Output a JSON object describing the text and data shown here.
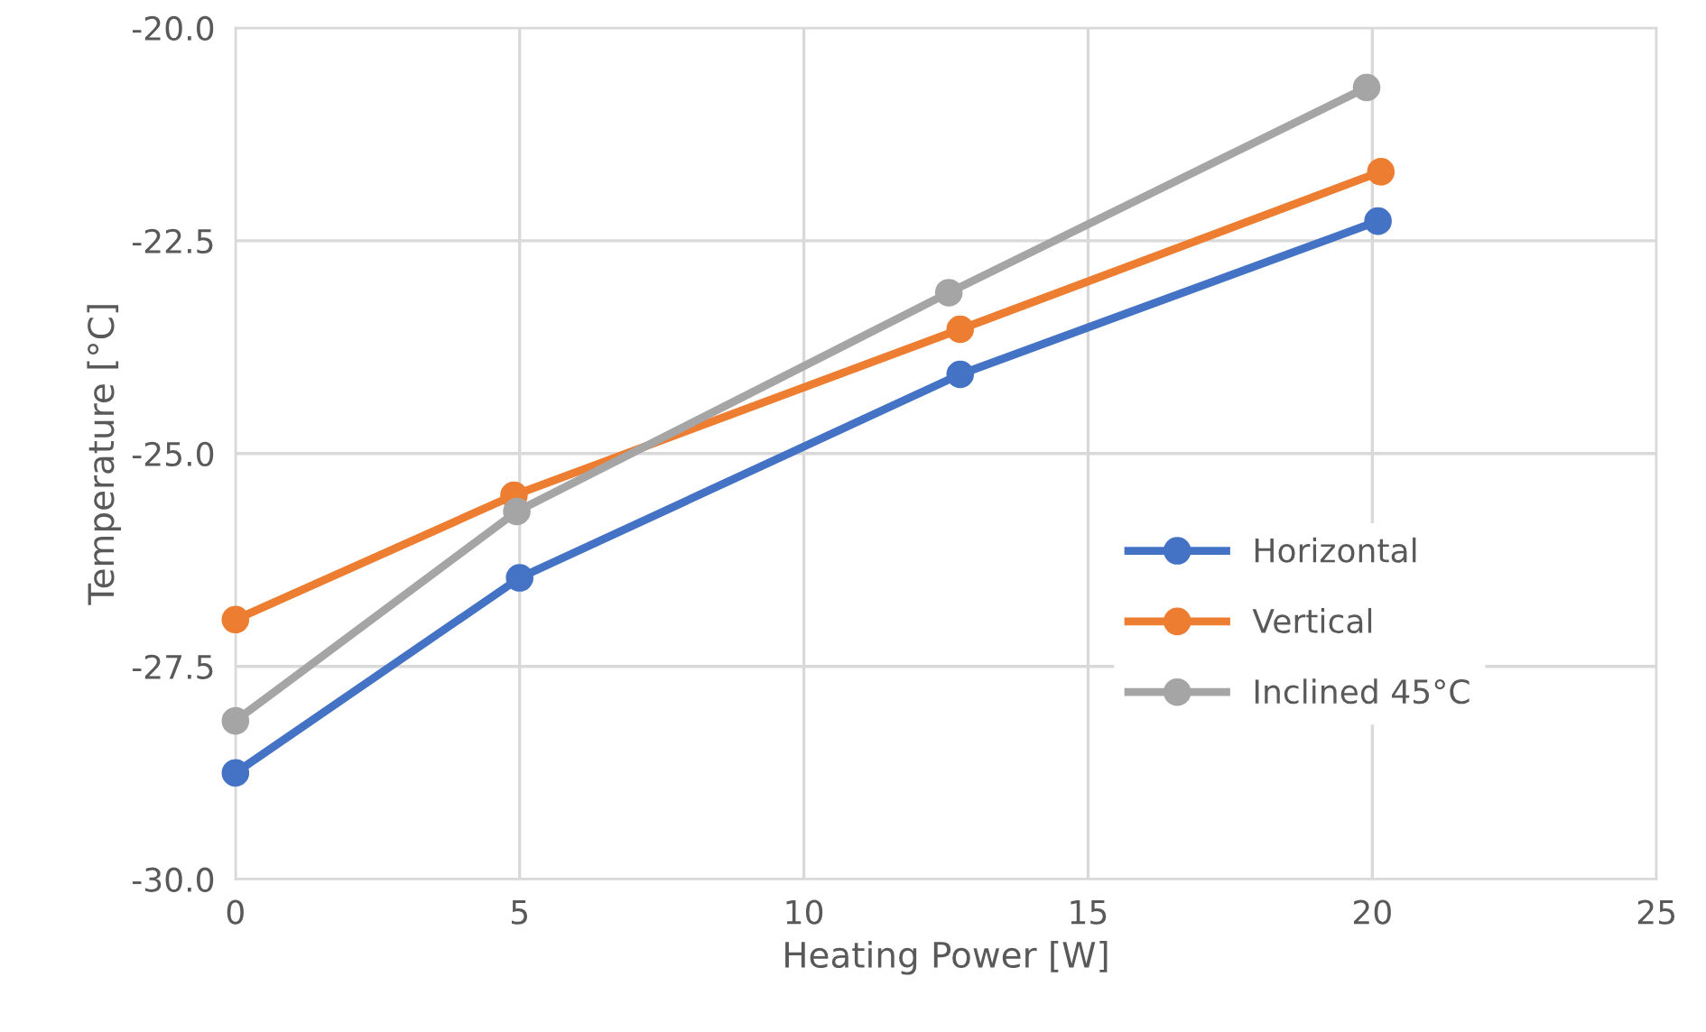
{
  "chart_data": {
    "type": "line",
    "xlabel": "Heating Power [W]",
    "ylabel": "Temperature [°C]",
    "xlim": [
      0,
      25
    ],
    "xticks": [
      0,
      5,
      10,
      15,
      20,
      25
    ],
    "ylim": [
      -30,
      -20
    ],
    "yticks": [
      {
        "value": -30,
        "label": "-30.0"
      },
      {
        "value": -27.5,
        "label": "-27.5"
      },
      {
        "value": -25,
        "label": "-25.0"
      },
      {
        "value": -22.5,
        "label": "-22.5"
      },
      {
        "value": -20,
        "label": "-20.0"
      }
    ],
    "grid": true,
    "legend": "right",
    "marker": "circle",
    "line_style": "solid",
    "series": [
      {
        "name": "Horizontal",
        "color": "#4472c4",
        "x": [
          0,
          5,
          12.75,
          20.1
        ],
        "values": [
          -28.75,
          -26.46,
          -24.07,
          -22.27
        ]
      },
      {
        "name": "Vertical",
        "color": "#ed7d31",
        "x": [
          0,
          4.9,
          12.75,
          20.15
        ],
        "values": [
          -26.95,
          -25.49,
          -23.54,
          -21.69
        ]
      },
      {
        "name": "Inclined 45°C",
        "color": "#a5a5a5",
        "x": [
          0,
          4.95,
          12.55,
          19.9
        ],
        "values": [
          -28.14,
          -25.68,
          -23.11,
          -20.7
        ]
      }
    ]
  }
}
